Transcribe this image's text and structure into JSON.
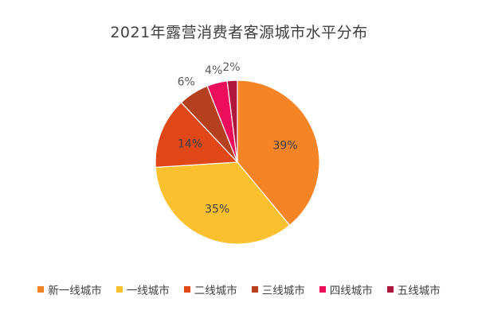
{
  "chart_data": {
    "type": "pie",
    "title": "2021年露营消费者客源城市水平分布",
    "categories": [
      "新一线城市",
      "一线城市",
      "二线城市",
      "三线城市",
      "四线城市",
      "五线城市"
    ],
    "values": [
      39,
      35,
      14,
      6,
      4,
      2
    ],
    "labels": [
      "39%",
      "35%",
      "14%",
      "6%",
      "4%",
      "2%"
    ],
    "colors": [
      "#F58426",
      "#FBC02D",
      "#E0481A",
      "#B4401F",
      "#EC0E5B",
      "#B0173D"
    ],
    "legend_position": "bottom"
  }
}
